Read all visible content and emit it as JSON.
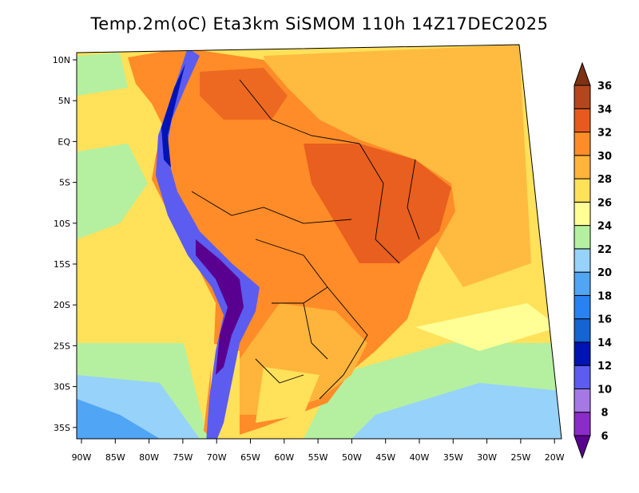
{
  "title": "Temp.2m(oC) Eta3km SiSMOM 110h 14Z17DEC2025",
  "lat_labels": [
    "10N",
    "5N",
    "EQ",
    "5S",
    "10S",
    "15S",
    "20S",
    "25S",
    "30S",
    "35S"
  ],
  "lon_labels": [
    "90W",
    "85W",
    "80W",
    "75W",
    "70W",
    "65W",
    "60W",
    "55W",
    "50W",
    "45W",
    "40W",
    "35W",
    "30W",
    "25W",
    "20W"
  ],
  "colorbar": {
    "levels": [
      "6",
      "8",
      "10",
      "12",
      "14",
      "16",
      "18",
      "20",
      "22",
      "24",
      "26",
      "28",
      "30",
      "32",
      "34",
      "36"
    ],
    "colors": [
      "#5a0090",
      "#8c2cc8",
      "#a578e6",
      "#5c5cf0",
      "#0014b4",
      "#1464d2",
      "#2882f0",
      "#50a5f5",
      "#96d2fa",
      "#b4f0a0",
      "#ffff96",
      "#ffe15a",
      "#ffb43c",
      "#ff8c28",
      "#e65a1e",
      "#b4461e",
      "#7d3214"
    ]
  },
  "colors": {
    "ocean": "#ffe15a",
    "cool_ocean": "#b4f0a0",
    "cold_ocean": "#96d2fa",
    "land_hot": "#ff8c28",
    "land_very_hot": "#e65a1e",
    "land_mild": "#ffb43c",
    "andes_cold": "#5c5cf0",
    "andes_very_cold": "#5a0090",
    "border": "#000000"
  }
}
